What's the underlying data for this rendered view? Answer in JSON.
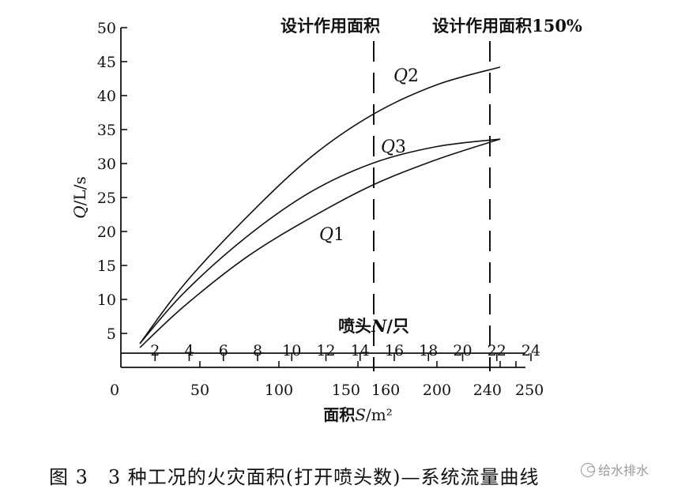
{
  "chart_data": {
    "type": "line",
    "ylabel": "Q/L/s",
    "y_ticks": [
      5,
      10,
      15,
      20,
      25,
      30,
      35,
      40,
      45,
      50
    ],
    "ylim": [
      0,
      50
    ],
    "xlabel_prefix": "面积",
    "xlabel_var": "S",
    "xlabel_unit": "/m²",
    "x_ticks": [
      0,
      50,
      100,
      150,
      160,
      200,
      240,
      250
    ],
    "xlim": [
      0,
      250
    ],
    "nozzle_axis": {
      "label_prefix": "喷头",
      "label_var": "N",
      "label_suffix": "/只",
      "ticks": [
        2,
        4,
        6,
        8,
        10,
        12,
        14,
        16,
        18,
        20,
        22,
        24
      ],
      "range": [
        0,
        24
      ]
    },
    "reference_lines": [
      {
        "x": 160,
        "label": "设计作用面积"
      },
      {
        "x": 240,
        "label": "设计作用面积150%"
      }
    ],
    "series": [
      {
        "name": "Q2",
        "x": [
          12,
          40,
          80,
          120,
          160,
          200,
          240
        ],
        "y": [
          3.5,
          12.2,
          22.2,
          30.9,
          37.3,
          41.6,
          44.2
        ]
      },
      {
        "name": "Q3",
        "x": [
          12,
          40,
          80,
          120,
          160,
          200,
          240
        ],
        "y": [
          3.5,
          11.0,
          19.3,
          25.8,
          30.1,
          32.5,
          33.6
        ]
      },
      {
        "name": "Q1",
        "x": [
          12,
          40,
          80,
          120,
          160,
          200,
          240
        ],
        "y": [
          2.9,
          9.0,
          16.3,
          22.0,
          26.9,
          30.6,
          33.6
        ]
      }
    ]
  },
  "caption": "图 3　3 种工况的火灾面积(打开喷头数)—系统流量曲线",
  "watermark": "给水排水"
}
